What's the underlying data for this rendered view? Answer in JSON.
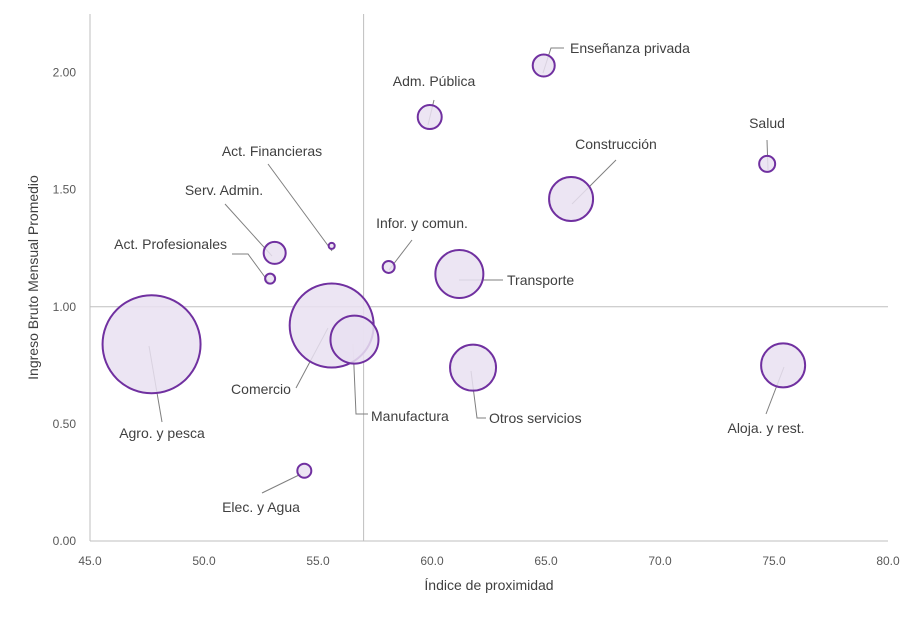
{
  "chart_data": {
    "type": "scatter",
    "subtype": "bubble",
    "title": "",
    "xlabel": "Índice de proximidad",
    "ylabel": "Ingreso Bruto Mensual Promedio",
    "xlim": [
      45,
      80
    ],
    "ylim": [
      0,
      2.25
    ],
    "x_ticks": [
      "45.0",
      "50.0",
      "55.0",
      "60.0",
      "65.0",
      "70.0",
      "75.0",
      "80.0"
    ],
    "y_ticks": [
      "0.00",
      "0.50",
      "1.00",
      "1.50",
      "2.00"
    ],
    "reference_lines": {
      "x": 57.0,
      "y": 1.0
    },
    "grid": false,
    "legend": "none",
    "colors": {
      "bubble_stroke": "#7030a0",
      "bubble_fill": "#e9e1f1",
      "axis": "#bfbfbf",
      "leader": "#7f7f7f"
    },
    "points": [
      {
        "label": "Agro. y pesca",
        "x": 47.7,
        "y": 0.84,
        "size": 49
      },
      {
        "label": "Comercio",
        "x": 55.6,
        "y": 0.92,
        "size": 42
      },
      {
        "label": "Manufactura",
        "x": 56.6,
        "y": 0.86,
        "size": 24
      },
      {
        "label": "Otros servicios",
        "x": 61.8,
        "y": 0.74,
        "size": 23
      },
      {
        "label": "Transporte",
        "x": 61.2,
        "y": 1.14,
        "size": 24
      },
      {
        "label": "Construcción",
        "x": 66.1,
        "y": 1.46,
        "size": 22
      },
      {
        "label": "Aloja. y rest.",
        "x": 75.4,
        "y": 0.75,
        "size": 22
      },
      {
        "label": "Adm. Pública",
        "x": 59.9,
        "y": 1.81,
        "size": 12
      },
      {
        "label": "Enseñanza privada",
        "x": 64.9,
        "y": 2.03,
        "size": 11
      },
      {
        "label": "Salud",
        "x": 74.7,
        "y": 1.61,
        "size": 8
      },
      {
        "label": "Serv. Admin.",
        "x": 53.1,
        "y": 1.23,
        "size": 11
      },
      {
        "label": "Act. Profesionales",
        "x": 52.9,
        "y": 1.12,
        "size": 5
      },
      {
        "label": "Act. Financieras",
        "x": 55.6,
        "y": 1.26,
        "size": 3
      },
      {
        "label": "Infor. y comun.",
        "x": 58.1,
        "y": 1.17,
        "size": 6
      },
      {
        "label": "Elec. y Agua",
        "x": 54.4,
        "y": 0.3,
        "size": 7
      }
    ]
  }
}
